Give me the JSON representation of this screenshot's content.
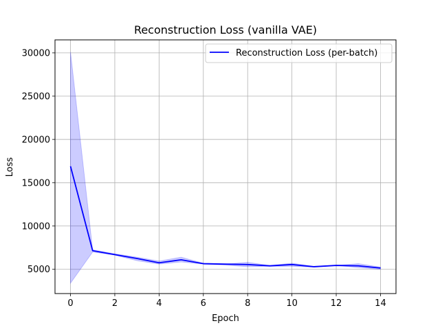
{
  "chart_data": {
    "type": "line",
    "title": "Reconstruction Loss (vanilla VAE)",
    "xlabel": "Epoch",
    "ylabel": "Loss",
    "xlim": [
      -0.7,
      14.7
    ],
    "ylim": [
      2200,
      31500
    ],
    "xticks": [
      0,
      2,
      4,
      6,
      8,
      10,
      12,
      14
    ],
    "yticks": [
      5000,
      10000,
      15000,
      20000,
      25000,
      30000
    ],
    "grid": true,
    "legend_position": "top-right",
    "series": [
      {
        "name": "Reconstruction Loss (per-batch)",
        "color": "#0000ff",
        "band_color": "#0000ff",
        "x": [
          0,
          1,
          2,
          3,
          4,
          5,
          6,
          7,
          8,
          9,
          10,
          11,
          12,
          13,
          14
        ],
        "values": [
          16900,
          7150,
          6700,
          6250,
          5750,
          6100,
          5650,
          5600,
          5550,
          5400,
          5550,
          5300,
          5450,
          5400,
          5150
        ],
        "band_upper": [
          30100,
          7250,
          6800,
          6400,
          5950,
          6400,
          5700,
          5600,
          5800,
          5450,
          5700,
          5350,
          5450,
          5650,
          5250
        ],
        "band_lower": [
          3400,
          7000,
          6650,
          6000,
          5600,
          5850,
          5600,
          5500,
          5300,
          5350,
          5350,
          5250,
          5450,
          5200,
          5000
        ]
      }
    ]
  }
}
